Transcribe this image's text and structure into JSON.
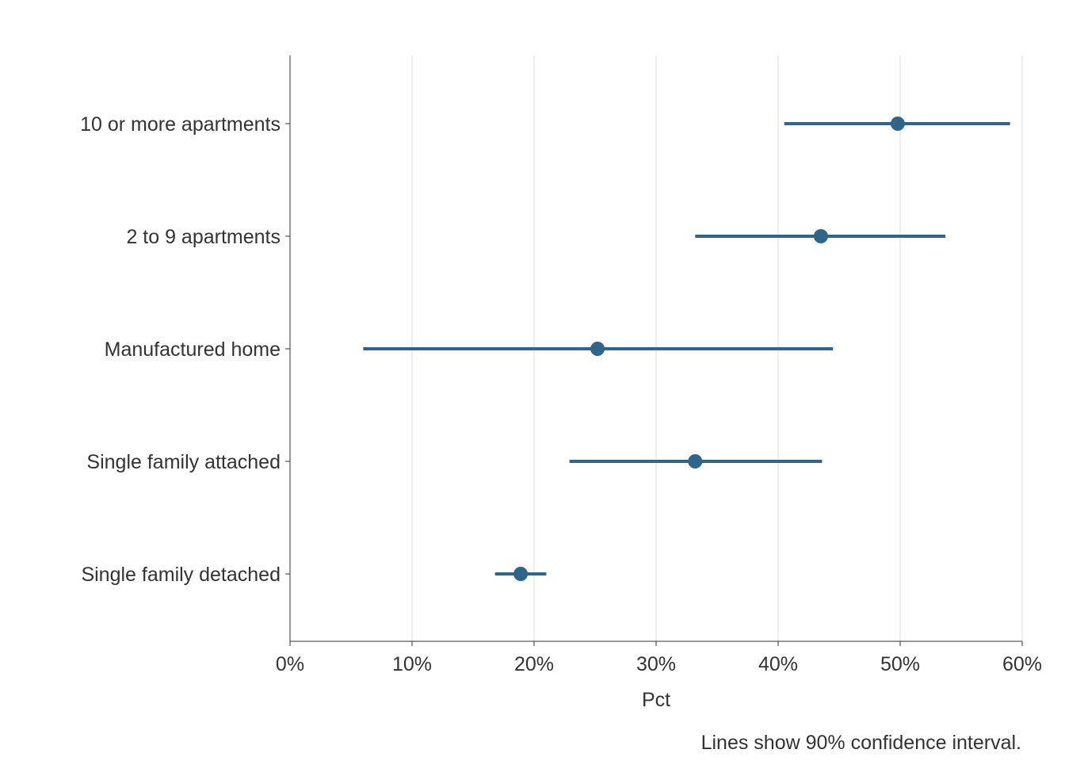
{
  "chart_data": {
    "type": "dot-interval",
    "orientation": "horizontal",
    "categories": [
      "10 or more apartments",
      "2 to 9 apartments",
      "Manufactured home",
      "Single family attached",
      "Single family detached"
    ],
    "points": [
      {
        "category": "10 or more apartments",
        "value": 49.8,
        "low": 40.5,
        "high": 59.0
      },
      {
        "category": "2 to 9 apartments",
        "value": 43.5,
        "low": 33.2,
        "high": 53.7
      },
      {
        "category": "Manufactured home",
        "value": 25.2,
        "low": 6.0,
        "high": 44.5
      },
      {
        "category": "Single family attached",
        "value": 33.2,
        "low": 22.9,
        "high": 43.6
      },
      {
        "category": "Single family detached",
        "value": 18.9,
        "low": 16.8,
        "high": 21.0
      }
    ],
    "xlabel": "Pct",
    "xlim": [
      0,
      60
    ],
    "xticks": [
      0,
      10,
      20,
      30,
      40,
      50,
      60
    ],
    "xtick_labels": [
      "0%",
      "10%",
      "20%",
      "30%",
      "40%",
      "50%",
      "60%"
    ],
    "caption": "Lines show 90% confidence interval.",
    "grid": "vertical",
    "color": "#2e6589"
  }
}
